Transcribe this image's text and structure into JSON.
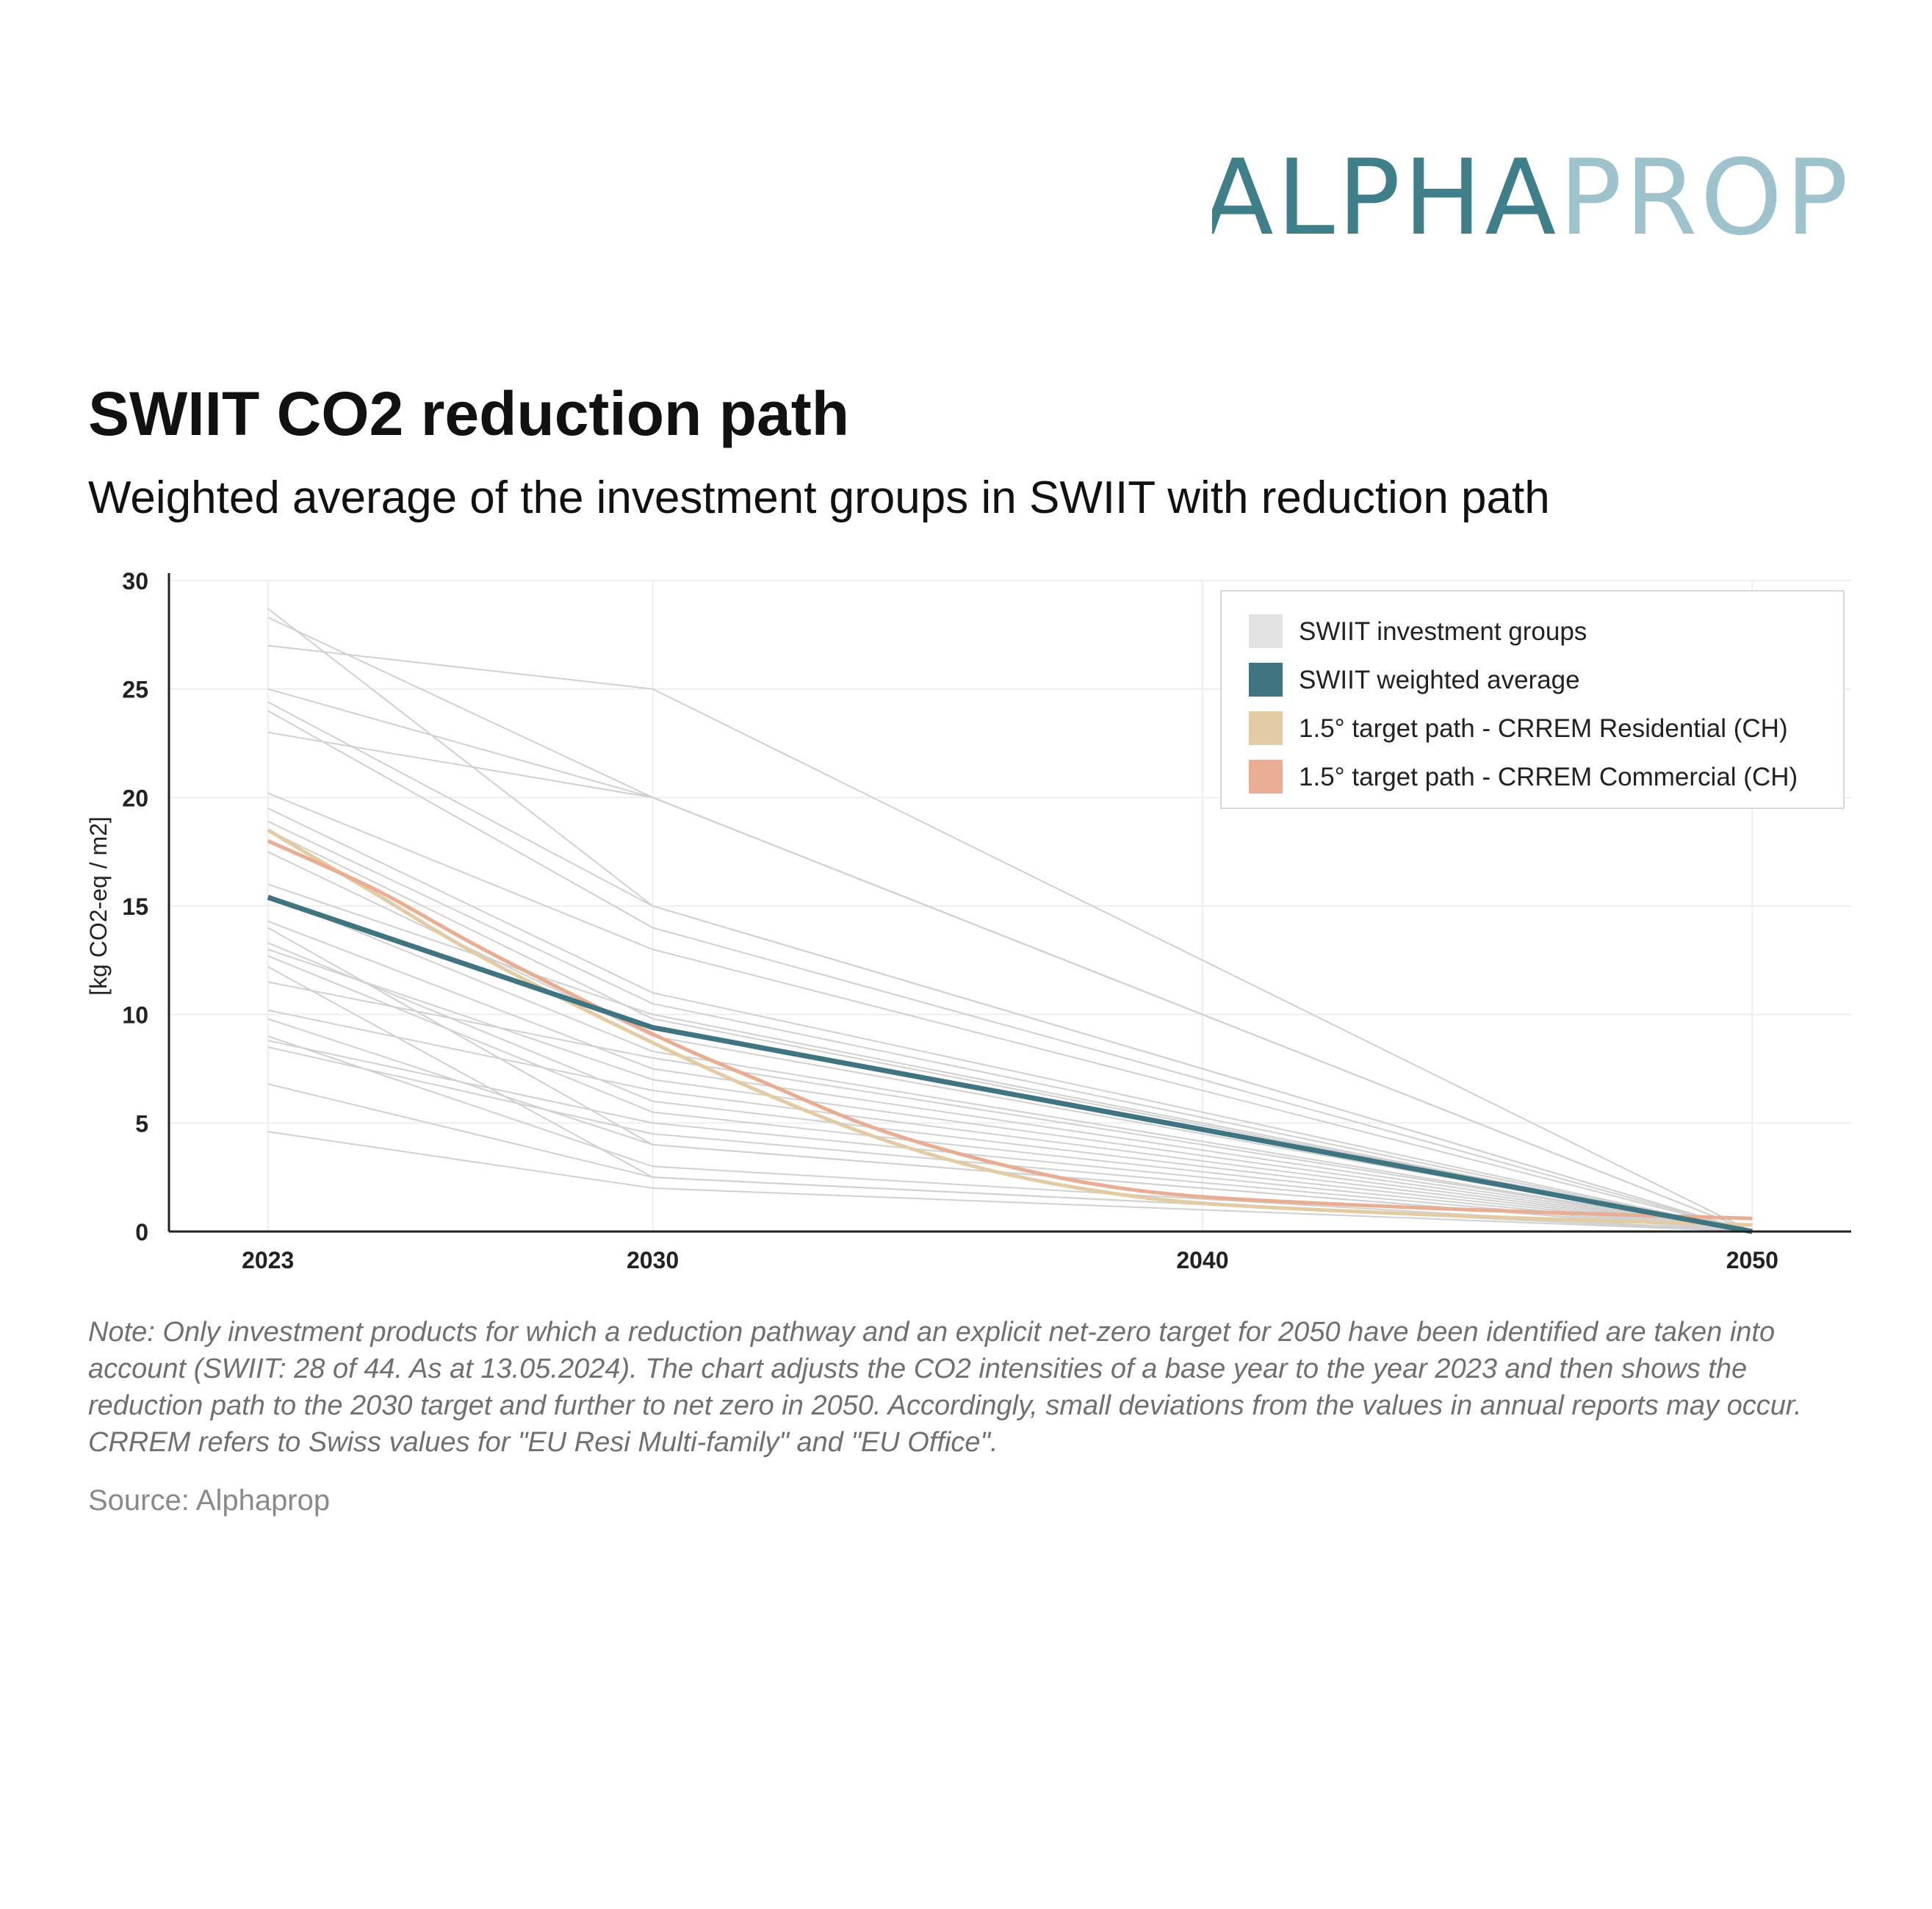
{
  "logo": {
    "part1": "ALPHA",
    "part2": "PROP",
    "color1": "#3F7F8A",
    "color2": "#9FC3CC"
  },
  "title": "SWIIT CO2 reduction path",
  "subtitle": "Weighted average of the investment groups in SWIIT with reduction path",
  "note": "Note: Only investment products for which a reduction pathway and an explicit net-zero target for 2050 have been identified are taken into account (SWIIT: 28 of 44. As at 13.05.2024). The chart adjusts the CO2 intensities of a base year to the year 2023 and then shows the reduction path to the 2030 target and further to net zero in 2050. Accordingly, small deviations from the values in annual reports may occur. CRREM refers to Swiss values for \"EU Resi Multi-family\" and \"EU Office\".",
  "source": "Source: Alphaprop",
  "chart_data": {
    "type": "line",
    "ylabel": "[kg CO2-eq / m2]",
    "xlabel": "",
    "xlim": [
      2021.2,
      2051.8
    ],
    "ylim": [
      0,
      30
    ],
    "x_ticks": [
      "2023",
      "2030",
      "2040",
      "2050"
    ],
    "y_ticks": [
      "0",
      "5",
      "10",
      "15",
      "20",
      "25",
      "30"
    ],
    "grid": true,
    "legend_position": "top-right",
    "colors": {
      "groups": "#D0D0D0",
      "groups_legend": "#E3E3E3",
      "average": "#3F7580",
      "residential": "#E3CCA4",
      "commercial": "#E8AD92",
      "axis": "#222222",
      "grid": "#EEEEEE"
    },
    "legend": [
      {
        "label": "SWIIT investment groups",
        "key": "groups_legend"
      },
      {
        "label": "SWIIT weighted average",
        "key": "average"
      },
      {
        "label": "1.5° target path - CRREM Residential (CH)",
        "key": "residential"
      },
      {
        "label": "1.5° target path - CRREM Commercial (CH)",
        "key": "commercial"
      }
    ],
    "groups": [
      {
        "x": [
          2023,
          2030,
          2050
        ],
        "y": [
          28.7,
          15.0,
          0
        ]
      },
      {
        "x": [
          2023,
          2030,
          2050
        ],
        "y": [
          28.3,
          20.0,
          0
        ]
      },
      {
        "x": [
          2023,
          2030,
          2050
        ],
        "y": [
          27.0,
          25.0,
          0
        ]
      },
      {
        "x": [
          2023,
          2030,
          2050
        ],
        "y": [
          25.0,
          20.0,
          0
        ]
      },
      {
        "x": [
          2023,
          2030,
          2050
        ],
        "y": [
          24.4,
          15.0,
          0
        ]
      },
      {
        "x": [
          2023,
          2030,
          2050
        ],
        "y": [
          24.0,
          14.0,
          0
        ]
      },
      {
        "x": [
          2023,
          2030,
          2050
        ],
        "y": [
          23.0,
          20.0,
          0
        ]
      },
      {
        "x": [
          2023,
          2030,
          2050
        ],
        "y": [
          20.2,
          13.0,
          0
        ]
      },
      {
        "x": [
          2023,
          2030,
          2050
        ],
        "y": [
          19.5,
          11.0,
          0
        ]
      },
      {
        "x": [
          2023,
          2030,
          2050
        ],
        "y": [
          18.9,
          10.5,
          0
        ]
      },
      {
        "x": [
          2023,
          2030,
          2050
        ],
        "y": [
          18.5,
          9.8,
          0
        ]
      },
      {
        "x": [
          2023,
          2030,
          2050
        ],
        "y": [
          17.5,
          9.0,
          0
        ]
      },
      {
        "x": [
          2023,
          2030,
          2050
        ],
        "y": [
          16.0,
          10.0,
          0
        ]
      },
      {
        "x": [
          2023,
          2030,
          2050
        ],
        "y": [
          15.5,
          8.3,
          0
        ]
      },
      {
        "x": [
          2023,
          2030,
          2050
        ],
        "y": [
          14.3,
          7.5,
          0
        ]
      },
      {
        "x": [
          2023,
          2030,
          2050
        ],
        "y": [
          14.0,
          4.0,
          0
        ]
      },
      {
        "x": [
          2023,
          2030,
          2050
        ],
        "y": [
          13.3,
          6.0,
          0
        ]
      },
      {
        "x": [
          2023,
          2030,
          2050
        ],
        "y": [
          13.0,
          7.0,
          0
        ]
      },
      {
        "x": [
          2023,
          2030,
          2050
        ],
        "y": [
          12.7,
          5.5,
          0
        ]
      },
      {
        "x": [
          2023,
          2030,
          2050
        ],
        "y": [
          12.2,
          2.5,
          0
        ]
      },
      {
        "x": [
          2023,
          2030,
          2050
        ],
        "y": [
          11.5,
          8.0,
          0
        ]
      },
      {
        "x": [
          2023,
          2030,
          2050
        ],
        "y": [
          10.2,
          6.5,
          0
        ]
      },
      {
        "x": [
          2023,
          2030,
          2050
        ],
        "y": [
          9.8,
          4.0,
          0
        ]
      },
      {
        "x": [
          2023,
          2030,
          2050
        ],
        "y": [
          9.0,
          3.0,
          0
        ]
      },
      {
        "x": [
          2023,
          2030,
          2050
        ],
        "y": [
          8.8,
          5.0,
          0
        ]
      },
      {
        "x": [
          2023,
          2030,
          2050
        ],
        "y": [
          8.5,
          4.5,
          0
        ]
      },
      {
        "x": [
          2023,
          2030,
          2050
        ],
        "y": [
          6.8,
          2.5,
          0
        ]
      },
      {
        "x": [
          2023,
          2030,
          2050
        ],
        "y": [
          4.6,
          2.0,
          0
        ]
      }
    ],
    "average": {
      "x": [
        2023,
        2030,
        2040,
        2050
      ],
      "y": [
        15.4,
        9.4,
        4.7,
        0
      ]
    },
    "residential": {
      "x": [
        2023,
        2025,
        2027,
        2030,
        2032,
        2034,
        2036,
        2038,
        2040,
        2043,
        2046,
        2050
      ],
      "y": [
        18.5,
        15.5,
        12.5,
        8.7,
        6.4,
        4.4,
        2.9,
        1.9,
        1.3,
        0.9,
        0.6,
        0.3
      ]
    },
    "commercial": {
      "x": [
        2023,
        2025,
        2027,
        2030,
        2032,
        2034,
        2036,
        2038,
        2040,
        2043,
        2046,
        2050
      ],
      "y": [
        18.0,
        15.7,
        12.9,
        9.1,
        6.9,
        4.8,
        3.3,
        2.2,
        1.6,
        1.2,
        0.9,
        0.6
      ]
    }
  }
}
